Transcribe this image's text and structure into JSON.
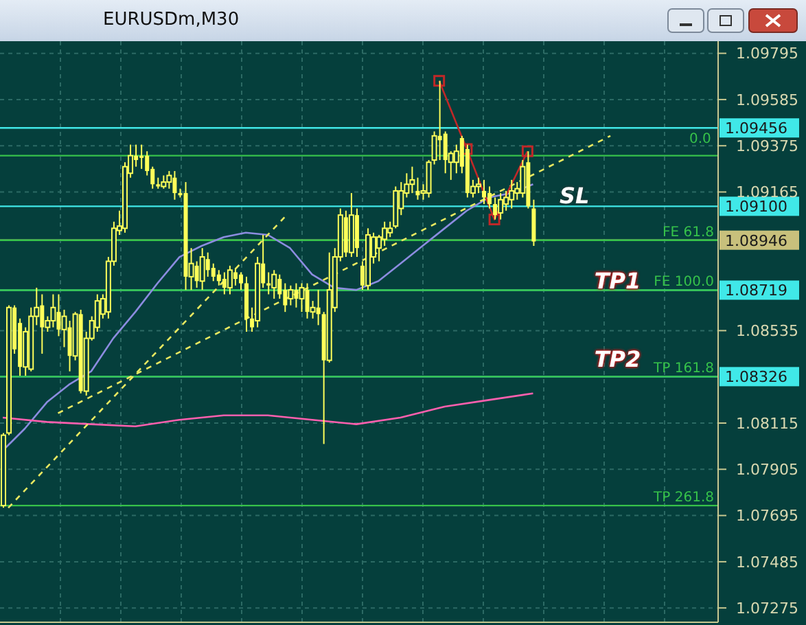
{
  "chart_data": {
    "type": "candlestick",
    "title": "EURUSDm,M30",
    "categories": [
      null,
      null,
      null,
      null,
      null,
      null,
      null,
      null,
      null,
      null,
      null,
      null,
      null,
      null,
      null,
      null,
      null,
      null,
      null,
      null,
      null,
      null,
      null,
      null,
      null,
      null,
      null,
      null,
      null,
      null,
      null,
      null,
      null,
      null,
      null,
      null,
      null,
      null,
      null,
      null,
      null,
      null,
      null,
      null,
      null,
      null,
      null,
      null,
      null,
      null,
      null,
      null,
      null,
      null,
      null,
      null,
      null,
      null,
      null,
      null,
      null,
      null,
      null,
      null,
      null,
      null,
      null,
      null,
      null,
      null,
      null,
      null,
      null,
      null,
      null,
      null,
      null,
      null,
      null,
      null,
      null,
      null,
      null,
      null,
      null,
      null,
      null,
      null,
      null,
      null,
      null,
      null,
      null,
      null,
      null,
      null,
      null,
      null,
      null,
      null,
      null,
      null,
      null,
      null,
      null,
      null,
      null,
      null,
      null,
      null,
      null,
      null,
      null,
      null,
      null,
      null,
      null,
      null,
      null,
      null,
      null,
      null,
      null,
      null,
      null,
      null,
      null,
      null,
      null,
      null
    ],
    "series": [
      {
        "type": "line",
        "color": "#8c8ce0",
        "line_style": "solid",
        "values": [
          1.0799,
          null,
          null,
          null,
          1.0809,
          null,
          null,
          null,
          1.0821,
          null,
          null,
          null,
          1.0829,
          null,
          null,
          null,
          1.0835,
          null,
          null,
          null,
          1.085,
          null,
          null,
          null,
          1.0862,
          null,
          null,
          null,
          1.0875,
          null,
          null,
          null,
          1.0887,
          null,
          null,
          null,
          1.0892,
          null,
          null,
          null,
          1.0896,
          null,
          null,
          null,
          1.0898,
          null,
          null,
          null,
          1.0897,
          null,
          null,
          null,
          1.0891,
          null,
          null,
          null,
          1.0879,
          null,
          null,
          null,
          1.0873,
          null,
          null,
          null,
          1.0872,
          null,
          null,
          null,
          1.0876,
          null,
          null,
          null,
          1.0884,
          null,
          null,
          null,
          1.0892,
          null,
          null,
          null,
          1.09,
          null,
          null,
          null,
          1.0908,
          null,
          null,
          null,
          1.0914,
          null,
          null,
          null,
          1.0916,
          null,
          null,
          null,
          1.092,
          null,
          null,
          null,
          null,
          null,
          null,
          null,
          null,
          null,
          null,
          null,
          null,
          null,
          null,
          null,
          null,
          null,
          null,
          null,
          null,
          null,
          null,
          null,
          null,
          null,
          null,
          null,
          null,
          null,
          null,
          null,
          null,
          null
        ]
      },
      {
        "type": "line",
        "color": "#ff5fae",
        "line_style": "solid",
        "values": [
          1.0814,
          null,
          null,
          null,
          null,
          null,
          null,
          null,
          1.0812,
          null,
          null,
          null,
          null,
          null,
          null,
          null,
          1.0811,
          null,
          null,
          null,
          null,
          null,
          null,
          null,
          1.081,
          null,
          null,
          null,
          null,
          null,
          null,
          null,
          1.0813,
          null,
          null,
          null,
          null,
          null,
          null,
          null,
          1.0815,
          null,
          null,
          null,
          null,
          null,
          null,
          null,
          1.0815,
          null,
          null,
          null,
          null,
          null,
          null,
          null,
          1.0813,
          null,
          null,
          null,
          null,
          null,
          null,
          null,
          1.0811,
          null,
          null,
          null,
          null,
          null,
          null,
          null,
          1.0814,
          null,
          null,
          null,
          null,
          null,
          null,
          null,
          1.0819,
          null,
          null,
          null,
          null,
          null,
          null,
          null,
          1.0822,
          null,
          null,
          null,
          null,
          null,
          null,
          null,
          1.0825,
          null,
          null,
          null,
          null,
          null,
          null,
          null,
          null,
          null,
          null,
          null,
          null,
          null,
          null,
          null,
          null,
          null,
          null,
          null,
          null,
          null,
          null,
          null,
          null,
          null,
          null,
          null,
          null,
          null,
          null,
          null,
          null,
          null
        ]
      },
      {
        "type": "line",
        "color": "#e8e860",
        "line_style": "dashed",
        "values": [
          null,
          1.0773,
          null,
          null,
          null,
          null,
          null,
          null,
          null,
          null,
          null,
          null,
          null,
          null,
          null,
          null,
          null,
          null,
          null,
          null,
          null,
          null,
          null,
          null,
          null,
          null,
          null,
          null,
          null,
          null,
          null,
          null,
          null,
          null,
          null,
          null,
          null,
          null,
          null,
          null,
          null,
          null,
          null,
          null,
          null,
          null,
          null,
          null,
          null,
          null,
          null,
          1.0905,
          null,
          null,
          null,
          null,
          null,
          null,
          null,
          null,
          null,
          null,
          null,
          null,
          null,
          null,
          null,
          null,
          null,
          null,
          null,
          null,
          null,
          null,
          null,
          null,
          null,
          null,
          null,
          null,
          null,
          null,
          null,
          null,
          null,
          null,
          null,
          null,
          null,
          null,
          null,
          null,
          null,
          null,
          null,
          null,
          null,
          null,
          null,
          null,
          null,
          null,
          null,
          null,
          null,
          null,
          null,
          null,
          null,
          null,
          null,
          null,
          null,
          null,
          null,
          null,
          null,
          null,
          null,
          null,
          null,
          null,
          null,
          null,
          null,
          null,
          null,
          null,
          null,
          null
        ]
      },
      {
        "type": "line",
        "color": "#e8e860",
        "line_style": "dashed",
        "values": [
          null,
          null,
          null,
          null,
          null,
          null,
          null,
          null,
          null,
          null,
          1.0816,
          null,
          null,
          null,
          null,
          null,
          null,
          null,
          null,
          null,
          null,
          null,
          null,
          null,
          null,
          null,
          null,
          null,
          null,
          null,
          null,
          null,
          null,
          null,
          null,
          null,
          null,
          null,
          null,
          null,
          null,
          null,
          null,
          null,
          null,
          null,
          null,
          null,
          null,
          null,
          null,
          null,
          null,
          null,
          null,
          null,
          null,
          null,
          null,
          null,
          null,
          null,
          null,
          null,
          null,
          null,
          null,
          null,
          null,
          null,
          null,
          null,
          null,
          null,
          null,
          null,
          null,
          null,
          null,
          null,
          null,
          null,
          null,
          null,
          null,
          null,
          null,
          null,
          null,
          null,
          null,
          null,
          null,
          null,
          null,
          null,
          null,
          null,
          null,
          null,
          null,
          null,
          null,
          null,
          null,
          null,
          null,
          null,
          null,
          null,
          1.0942,
          null,
          null,
          null,
          null,
          null,
          null,
          null,
          null,
          null,
          null,
          null,
          null,
          null,
          null,
          null,
          null,
          null,
          null,
          null
        ]
      },
      {
        "type": "line",
        "color": "#c02828",
        "line_style": "solid",
        "marker": "square",
        "values": [
          null,
          null,
          null,
          null,
          null,
          null,
          null,
          null,
          null,
          null,
          null,
          null,
          null,
          null,
          null,
          null,
          null,
          null,
          null,
          null,
          null,
          null,
          null,
          null,
          null,
          null,
          null,
          null,
          null,
          null,
          null,
          null,
          null,
          null,
          null,
          null,
          null,
          null,
          null,
          null,
          null,
          null,
          null,
          null,
          null,
          null,
          null,
          null,
          null,
          null,
          null,
          null,
          null,
          null,
          null,
          null,
          null,
          null,
          null,
          null,
          null,
          null,
          null,
          null,
          null,
          null,
          null,
          null,
          null,
          null,
          null,
          null,
          null,
          null,
          null,
          null,
          null,
          null,
          null,
          1.0967,
          null,
          null,
          null,
          null,
          1.0936,
          null,
          null,
          null,
          null,
          1.0904,
          null,
          null,
          null,
          null,
          null,
          1.0935,
          null,
          null,
          null,
          null,
          null,
          null,
          null,
          null,
          null,
          null,
          null,
          null,
          null,
          null,
          null,
          null,
          null,
          null,
          null,
          null,
          null,
          null,
          null,
          null,
          null,
          null,
          null,
          null,
          null,
          null,
          null,
          null,
          null,
          null
        ]
      },
      {
        "type": "candlestick",
        "color": "#ffff5a",
        "ohlc": [
          [
            1.0774,
            1.0807,
            1.0773,
            1.0806
          ],
          [
            1.0807,
            1.0865,
            1.0806,
            1.0864
          ],
          [
            1.0864,
            1.0865,
            1.0843,
            1.0845
          ],
          [
            1.0857,
            1.0859,
            1.0833,
            1.0837
          ],
          [
            1.0837,
            1.0855,
            1.0833,
            1.0853
          ],
          [
            1.0836,
            1.0864,
            1.0835,
            1.086
          ],
          [
            1.086,
            1.0873,
            1.0856,
            1.0864
          ],
          [
            1.0865,
            1.087,
            1.0843,
            1.0855
          ],
          [
            1.0855,
            1.086,
            1.0853,
            1.0858
          ],
          [
            1.0858,
            1.087,
            1.0855,
            1.0864
          ],
          [
            1.0862,
            1.087,
            1.0851,
            1.0854
          ],
          [
            1.0854,
            1.0863,
            1.0846,
            1.086
          ],
          [
            1.0855,
            1.0858,
            1.0835,
            1.0842
          ],
          [
            1.0842,
            1.0862,
            1.084,
            1.0861
          ],
          [
            1.0861,
            1.0863,
            1.0825,
            1.0826
          ],
          [
            1.0826,
            1.0853,
            1.0824,
            1.085
          ],
          [
            1.085,
            1.086,
            1.0849,
            1.0858
          ],
          [
            1.0855,
            1.087,
            1.0853,
            1.0867
          ],
          [
            1.0861,
            1.087,
            1.0859,
            1.0868
          ],
          [
            1.0862,
            1.0887,
            1.0859,
            1.0885
          ],
          [
            1.0885,
            1.0903,
            1.0883,
            1.09
          ],
          [
            1.0899,
            1.0908,
            1.0897,
            1.0901
          ],
          [
            1.09,
            1.093,
            1.0898,
            1.0928
          ],
          [
            1.0925,
            1.0938,
            1.0923,
            1.0933
          ],
          [
            1.0933,
            1.0938,
            1.0928,
            1.0931
          ],
          [
            1.0933,
            1.0938,
            1.0927,
            1.0932
          ],
          [
            1.0933,
            1.0935,
            1.0924,
            1.0926
          ],
          [
            1.0927,
            1.0928,
            1.0918,
            1.092
          ],
          [
            1.092,
            1.0923,
            1.0918,
            1.0919
          ],
          [
            1.0919,
            1.0924,
            1.0918,
            1.0921
          ],
          [
            1.0921,
            1.0926,
            1.0918,
            1.0924
          ],
          [
            1.0923,
            1.0926,
            1.0913,
            1.0916
          ],
          [
            1.0916,
            1.0918,
            1.0914,
            1.0915
          ],
          [
            1.0916,
            1.0921,
            1.0872,
            1.0878
          ],
          [
            1.0878,
            1.0891,
            1.0872,
            1.0884
          ],
          [
            1.0883,
            1.0885,
            1.0873,
            1.0876
          ],
          [
            1.0876,
            1.0891,
            1.0872,
            1.0887
          ],
          [
            1.0886,
            1.0889,
            1.0878,
            1.0881
          ],
          [
            1.0882,
            1.0884,
            1.0876,
            1.0878
          ],
          [
            1.0879,
            1.0881,
            1.0874,
            1.0876
          ],
          [
            1.0877,
            1.088,
            1.087,
            1.0873
          ],
          [
            1.0873,
            1.0883,
            1.087,
            1.0881
          ],
          [
            1.088,
            1.0882,
            1.0874,
            1.0877
          ],
          [
            1.0879,
            1.088,
            1.0872,
            1.0875
          ],
          [
            1.0875,
            1.0878,
            1.0853,
            1.0859
          ],
          [
            1.0859,
            1.0864,
            1.0853,
            1.0855
          ],
          [
            1.0858,
            1.0887,
            1.0855,
            1.0884
          ],
          [
            1.0884,
            1.0897,
            1.0873,
            1.0875
          ],
          [
            1.0875,
            1.088,
            1.087,
            1.0874
          ],
          [
            1.0873,
            1.0881,
            1.0868,
            1.0879
          ],
          [
            1.0877,
            1.0879,
            1.0868,
            1.087
          ],
          [
            1.0872,
            1.0875,
            1.0862,
            1.0865
          ],
          [
            1.0868,
            1.0874,
            1.0865,
            1.0872
          ],
          [
            1.0872,
            1.0875,
            1.0864,
            1.0868
          ],
          [
            1.0868,
            1.0875,
            1.0862,
            1.0873
          ],
          [
            1.0872,
            1.0875,
            1.0859,
            1.0862
          ],
          [
            1.0862,
            1.0867,
            1.0859,
            1.0864
          ],
          [
            1.0864,
            1.0872,
            1.0856,
            1.0861
          ],
          [
            1.0861,
            1.0862,
            1.0802,
            1.084
          ],
          [
            1.084,
            1.0889,
            1.0839,
            1.0872
          ],
          [
            1.0864,
            1.0891,
            1.0862,
            1.0887
          ],
          [
            1.0887,
            1.0909,
            1.0885,
            1.0906
          ],
          [
            1.0905,
            1.0908,
            1.0887,
            1.0889
          ],
          [
            1.0889,
            1.0916,
            1.0887,
            1.0906
          ],
          [
            1.0906,
            1.0909,
            1.0887,
            1.0891
          ],
          [
            1.0883,
            1.0885,
            1.0872,
            1.0874
          ],
          [
            1.0874,
            1.09,
            1.0872,
            1.0897
          ],
          [
            1.0887,
            1.0898,
            1.0884,
            1.0896
          ],
          [
            1.0891,
            1.0897,
            1.0885,
            1.0896
          ],
          [
            1.0895,
            1.0903,
            1.0892,
            1.09
          ],
          [
            1.0898,
            1.0903,
            1.0896,
            1.09
          ],
          [
            1.0901,
            1.0919,
            1.09,
            1.0917
          ],
          [
            1.0909,
            1.0921,
            1.0906,
            1.0917
          ],
          [
            1.0916,
            1.0925,
            1.0914,
            1.092
          ],
          [
            1.092,
            1.0928,
            1.0916,
            1.0922
          ],
          [
            1.0917,
            1.0923,
            1.0913,
            1.0915
          ],
          [
            1.0916,
            1.092,
            1.0913,
            1.0917
          ],
          [
            1.0916,
            1.0931,
            1.0914,
            1.093
          ],
          [
            1.0931,
            1.0944,
            1.0929,
            1.0942
          ],
          [
            1.0942,
            1.0967,
            1.0931,
            1.094
          ],
          [
            1.0943,
            1.0944,
            1.0925,
            1.0931
          ],
          [
            1.093,
            1.0935,
            1.0922,
            1.0934
          ],
          [
            1.093,
            1.0938,
            1.0925,
            1.0935
          ],
          [
            1.0941,
            1.0942,
            1.0925,
            1.0928
          ],
          [
            1.0936,
            1.0938,
            1.0914,
            1.0916
          ],
          [
            1.0916,
            1.0922,
            1.0914,
            1.0919
          ],
          [
            1.0919,
            1.0923,
            1.0916,
            1.092
          ],
          [
            1.0917,
            1.0922,
            1.0911,
            1.0914
          ],
          [
            1.0916,
            1.0919,
            1.0909,
            1.0911
          ],
          [
            1.0911,
            1.0914,
            1.0904,
            1.0906
          ],
          [
            1.0907,
            1.0916,
            1.0904,
            1.0913
          ],
          [
            1.0911,
            1.0917,
            1.0908,
            1.0914
          ],
          [
            1.0913,
            1.0922,
            1.0909,
            1.0917
          ],
          [
            1.0916,
            1.0921,
            1.0913,
            1.0918
          ],
          [
            1.0916,
            1.0931,
            1.0914,
            1.0928
          ],
          [
            1.093,
            1.0935,
            1.0909,
            1.091
          ],
          [
            1.0909,
            1.0913,
            1.0892,
            1.0894
          ],
          null,
          null,
          null,
          null,
          null,
          null,
          null,
          null,
          null,
          null,
          null,
          null,
          null,
          null,
          null,
          null,
          null,
          null,
          null,
          null,
          null,
          null,
          null,
          null,
          null,
          null,
          null,
          null,
          null,
          null,
          null,
          null,
          null
        ]
      }
    ],
    "ylim": [
      1.0721,
      1.0985
    ],
    "yticks": [
      1.07275,
      1.07485,
      1.07695,
      1.07905,
      1.08115,
      1.08535,
      1.09165,
      1.09375,
      1.09585,
      1.09795
    ],
    "grid": true,
    "tick_labels": "y",
    "ref_lines": [
      {
        "axis": "y",
        "value": 1.09456,
        "label": "1.09456",
        "color": "#40e8e8"
      },
      {
        "axis": "y",
        "value": 1.091,
        "label": "1.09100",
        "color": "#40e8e8"
      },
      {
        "axis": "y",
        "value": 1.08946,
        "label": "1.08946",
        "color": "#c8c07c"
      },
      {
        "axis": "y",
        "value": 1.08719,
        "label": "1.08719",
        "color": "#40e8e8"
      },
      {
        "axis": "y",
        "value": 1.08326,
        "label": "1.08326",
        "color": "#40e8e8"
      },
      {
        "axis": "y",
        "value": 1.0933,
        "color": "#36c24a"
      },
      {
        "axis": "y",
        "value": 1.08946,
        "label": "FE 61.8",
        "color": "#36c24a"
      },
      {
        "axis": "y",
        "value": 1.08719,
        "label": "FE 100.0",
        "color": "#36c24a"
      },
      {
        "axis": "y",
        "value": 1.08326,
        "label": "TP 161.8",
        "color": "#36c24a"
      },
      {
        "axis": "y",
        "value": 1.0774,
        "label": "TP 261.8",
        "color": "#36c24a"
      }
    ],
    "annotations": [
      "SL",
      "TP1",
      "TP2",
      "0.0"
    ]
  }
}
